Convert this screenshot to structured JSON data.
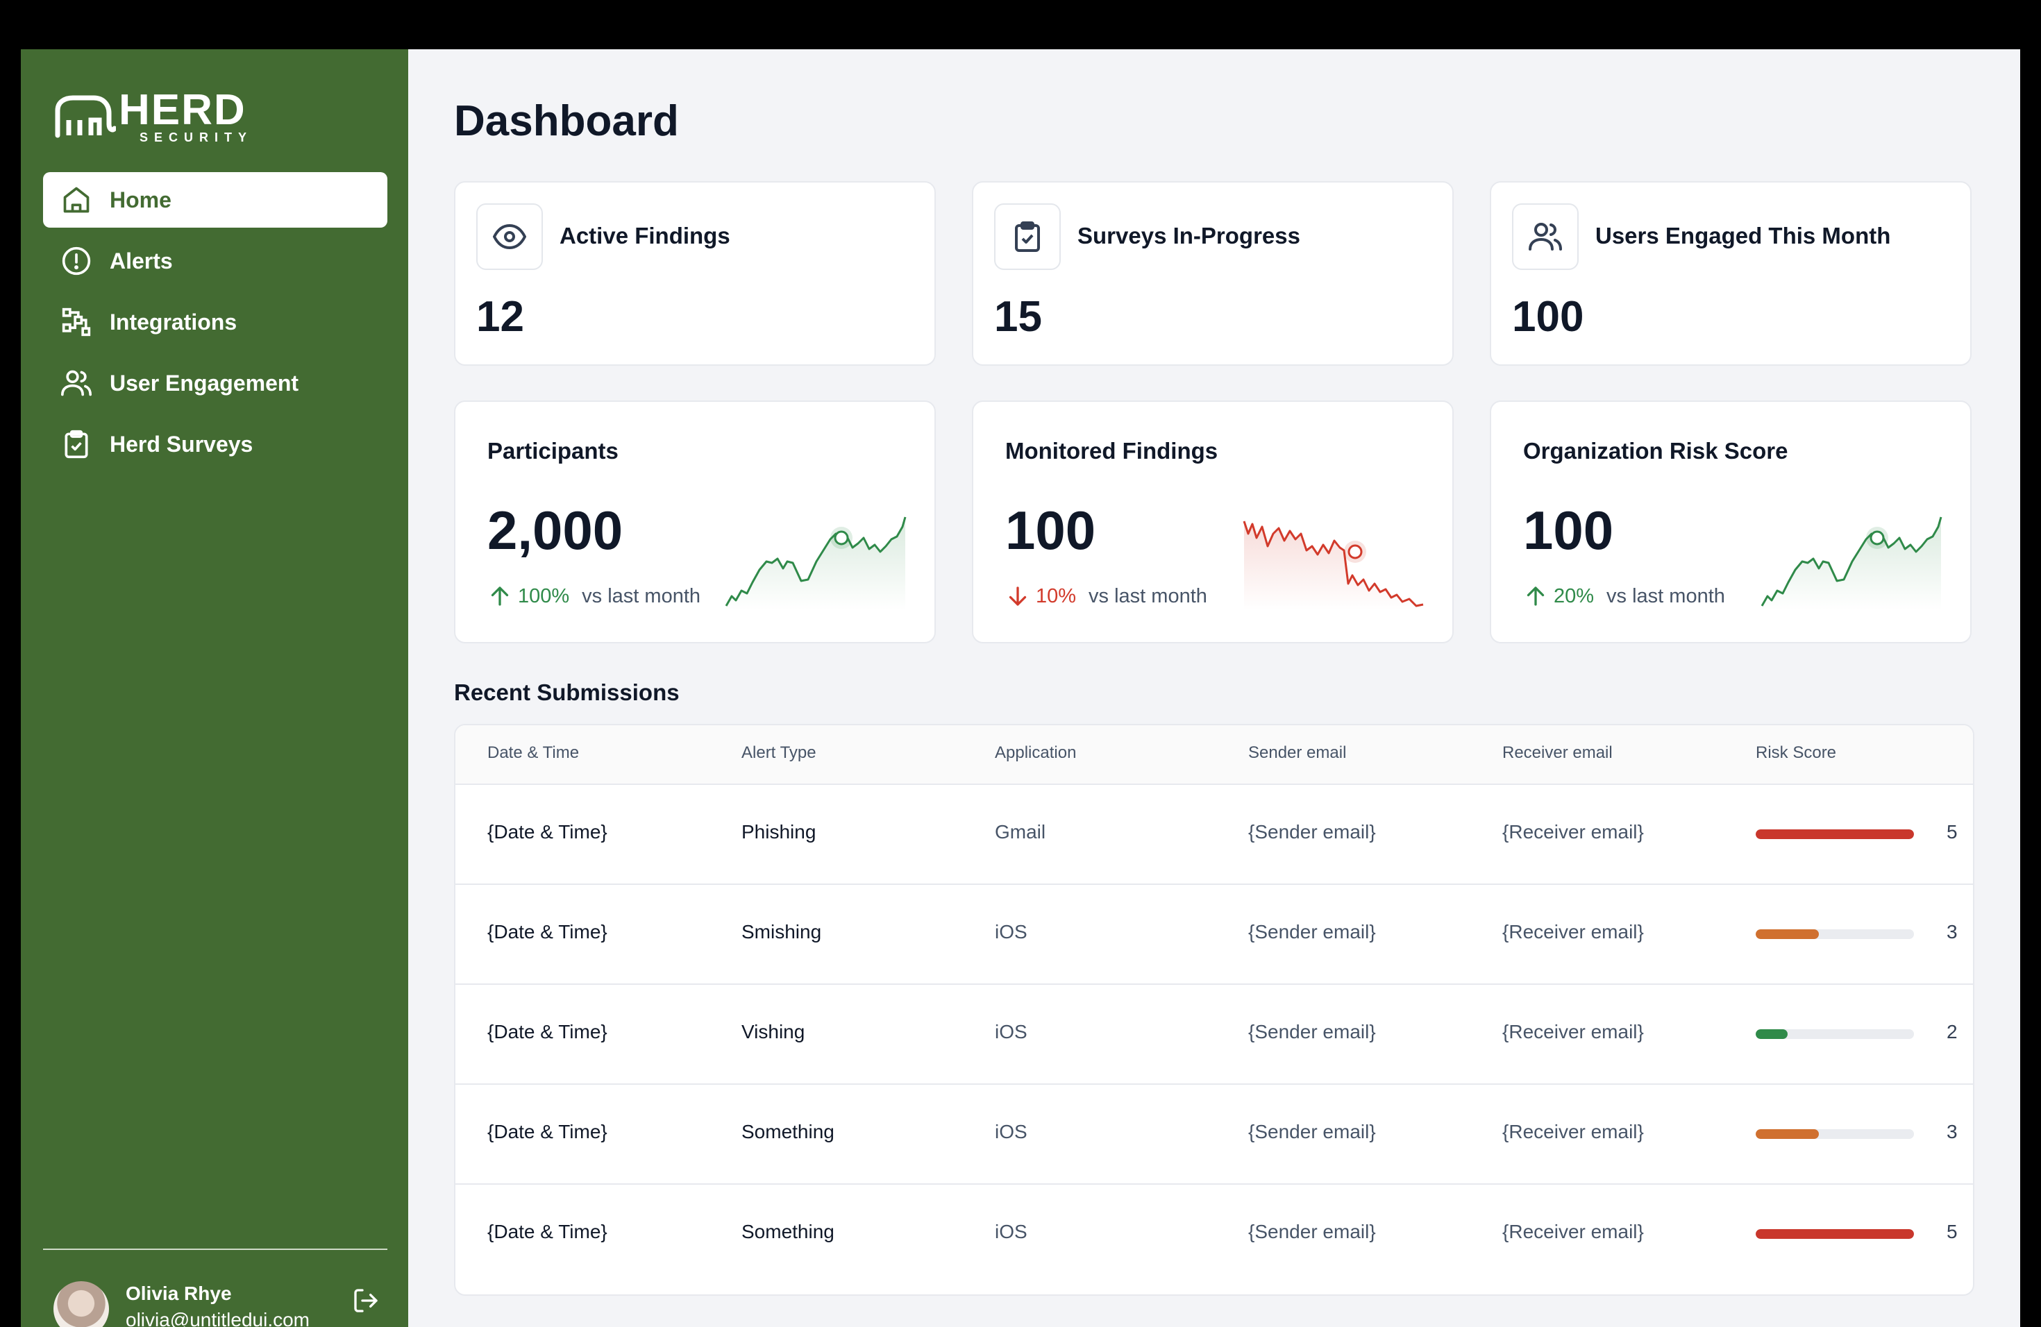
{
  "brand": {
    "name": "HERD",
    "sub": "SECURITY",
    "color": "#436b32"
  },
  "sidebar": {
    "items": [
      {
        "label": "Home",
        "icon": "home-icon",
        "active": true
      },
      {
        "label": "Alerts",
        "icon": "alert-circle-icon",
        "active": false
      },
      {
        "label": "Integrations",
        "icon": "integrations-icon",
        "active": false
      },
      {
        "label": "User Engagement",
        "icon": "users-icon",
        "active": false
      },
      {
        "label": "Herd Surveys",
        "icon": "clipboard-check-icon",
        "active": false
      }
    ],
    "user": {
      "name": "Olivia Rhye",
      "email": "olivia@untitledui.com"
    }
  },
  "page": {
    "title": "Dashboard"
  },
  "stats": [
    {
      "label": "Active Findings",
      "value": "12",
      "icon": "eye-icon"
    },
    {
      "label": "Surveys In-Progress",
      "value": "15",
      "icon": "clipboard-check-icon"
    },
    {
      "label": "Users Engaged This Month",
      "value": "100",
      "icon": "users-icon"
    }
  ],
  "metrics": [
    {
      "label": "Participants",
      "value": "2,000",
      "trend": "100%",
      "direction": "up",
      "vs": "vs last month",
      "color": "#2f8a49"
    },
    {
      "label": "Monitored Findings",
      "value": "100",
      "trend": "10%",
      "direction": "down",
      "vs": "vs last month",
      "color": "#d23a2b"
    },
    {
      "label": "Organization Risk Score",
      "value": "100",
      "trend": "20%",
      "direction": "up",
      "vs": "vs last month",
      "color": "#2f8a49"
    }
  ],
  "submissions": {
    "title": "Recent Submissions",
    "columns": [
      "Date & Time",
      "Alert Type",
      "Application",
      "Sender email",
      "Receiver email",
      "Risk Score"
    ],
    "rows": [
      {
        "date": "{Date & Time}",
        "type": "Phishing",
        "app": "Gmail",
        "sender": "{Sender email}",
        "receiver": "{Receiver email}",
        "risk": "5",
        "risk_level": 1.0,
        "risk_color": "#c9372c"
      },
      {
        "date": "{Date & Time}",
        "type": "Smishing",
        "app": "iOS",
        "sender": "{Sender email}",
        "receiver": "{Receiver email}",
        "risk": "3",
        "risk_level": 0.4,
        "risk_color": "#d0702f"
      },
      {
        "date": "{Date & Time}",
        "type": "Vishing",
        "app": "iOS",
        "sender": "{Sender email}",
        "receiver": "{Receiver email}",
        "risk": "2",
        "risk_level": 0.2,
        "risk_color": "#2f8a49"
      },
      {
        "date": "{Date & Time}",
        "type": "Something",
        "app": "iOS",
        "sender": "{Sender email}",
        "receiver": "{Receiver email}",
        "risk": "3",
        "risk_level": 0.4,
        "risk_color": "#d0702f"
      },
      {
        "date": "{Date & Time}",
        "type": "Something",
        "app": "iOS",
        "sender": "{Sender email}",
        "receiver": "{Receiver email}",
        "risk": "5",
        "risk_level": 1.0,
        "risk_color": "#c9372c"
      }
    ]
  }
}
